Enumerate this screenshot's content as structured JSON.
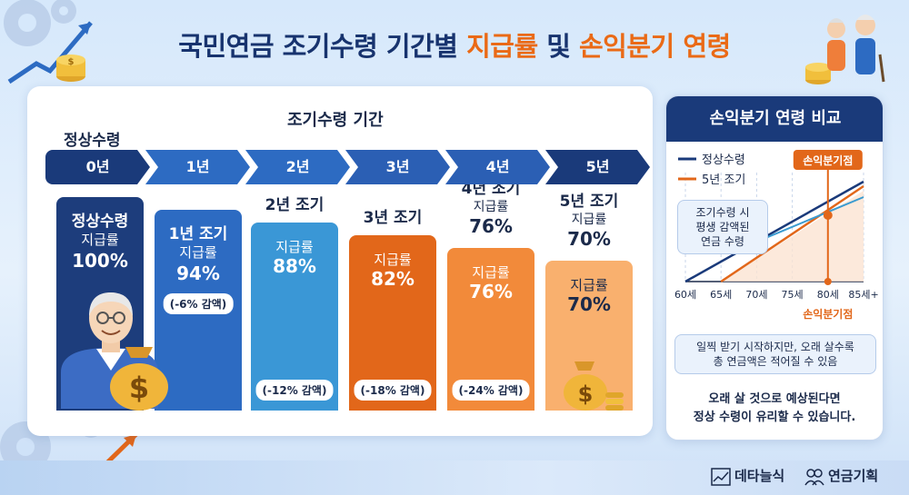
{
  "title": {
    "part1": "국민연금 조기수령 기간별 ",
    "part2": "지급률",
    "part3": " 및 ",
    "part4": "손익분기 연령"
  },
  "labels": {
    "normal": "정상수령",
    "period": "조기수령 기간"
  },
  "timeline": [
    "0년",
    "1년",
    "2년",
    "3년",
    "4년",
    "5년"
  ],
  "chart_data": {
    "type": "bar",
    "title": "국민연금 조기수령 기간별 지급률 및 손익분기 연령",
    "categories": [
      "정상수령",
      "1년 조기",
      "2년 조기",
      "3년 조기",
      "4년 조기",
      "5년 조기"
    ],
    "values": [
      100,
      94,
      88,
      82,
      76,
      70
    ],
    "value_labels": [
      "100%",
      "94%",
      "88%",
      "82%",
      "76%",
      "70%"
    ],
    "metric_label": "지급률",
    "reductions": [
      "",
      "(-6% 감액)",
      "(-12% 감액)",
      "(-18% 감액)",
      "(-24% 감액)",
      ""
    ],
    "reduction_top": "(-6% 감액)",
    "colors": [
      "#1d3d7c",
      "#2d6bc2",
      "#3a97d6",
      "#e2671a",
      "#f28a3a",
      "#f9b06e"
    ],
    "ylim": [
      0,
      100
    ]
  },
  "side": {
    "title": "손익분기 연령 비교",
    "legend": [
      {
        "name": "정상수령",
        "color": "#1a3a7a"
      },
      {
        "name": "5년 조기",
        "color": "#e2671a"
      }
    ],
    "breakeven_tag": "손익분기점",
    "breakeven_bottom": "손익분기점",
    "callout": [
      "조기수령 시",
      "평생 감액된",
      "연금 수령"
    ],
    "x_ticks": [
      "60세",
      "65세",
      "70세",
      "75세",
      "80세",
      "85세+"
    ],
    "note": [
      "일찍 받기 시작하지만, 오래 살수록",
      "총 연금액은 적어질 수 있음"
    ],
    "conclusion": [
      "오래 살 것으로 예상된다면",
      "정상 수령이 유리할 수 있습니다."
    ]
  },
  "footer": {
    "brand1": "데타늘식",
    "brand2": "연금기획"
  }
}
